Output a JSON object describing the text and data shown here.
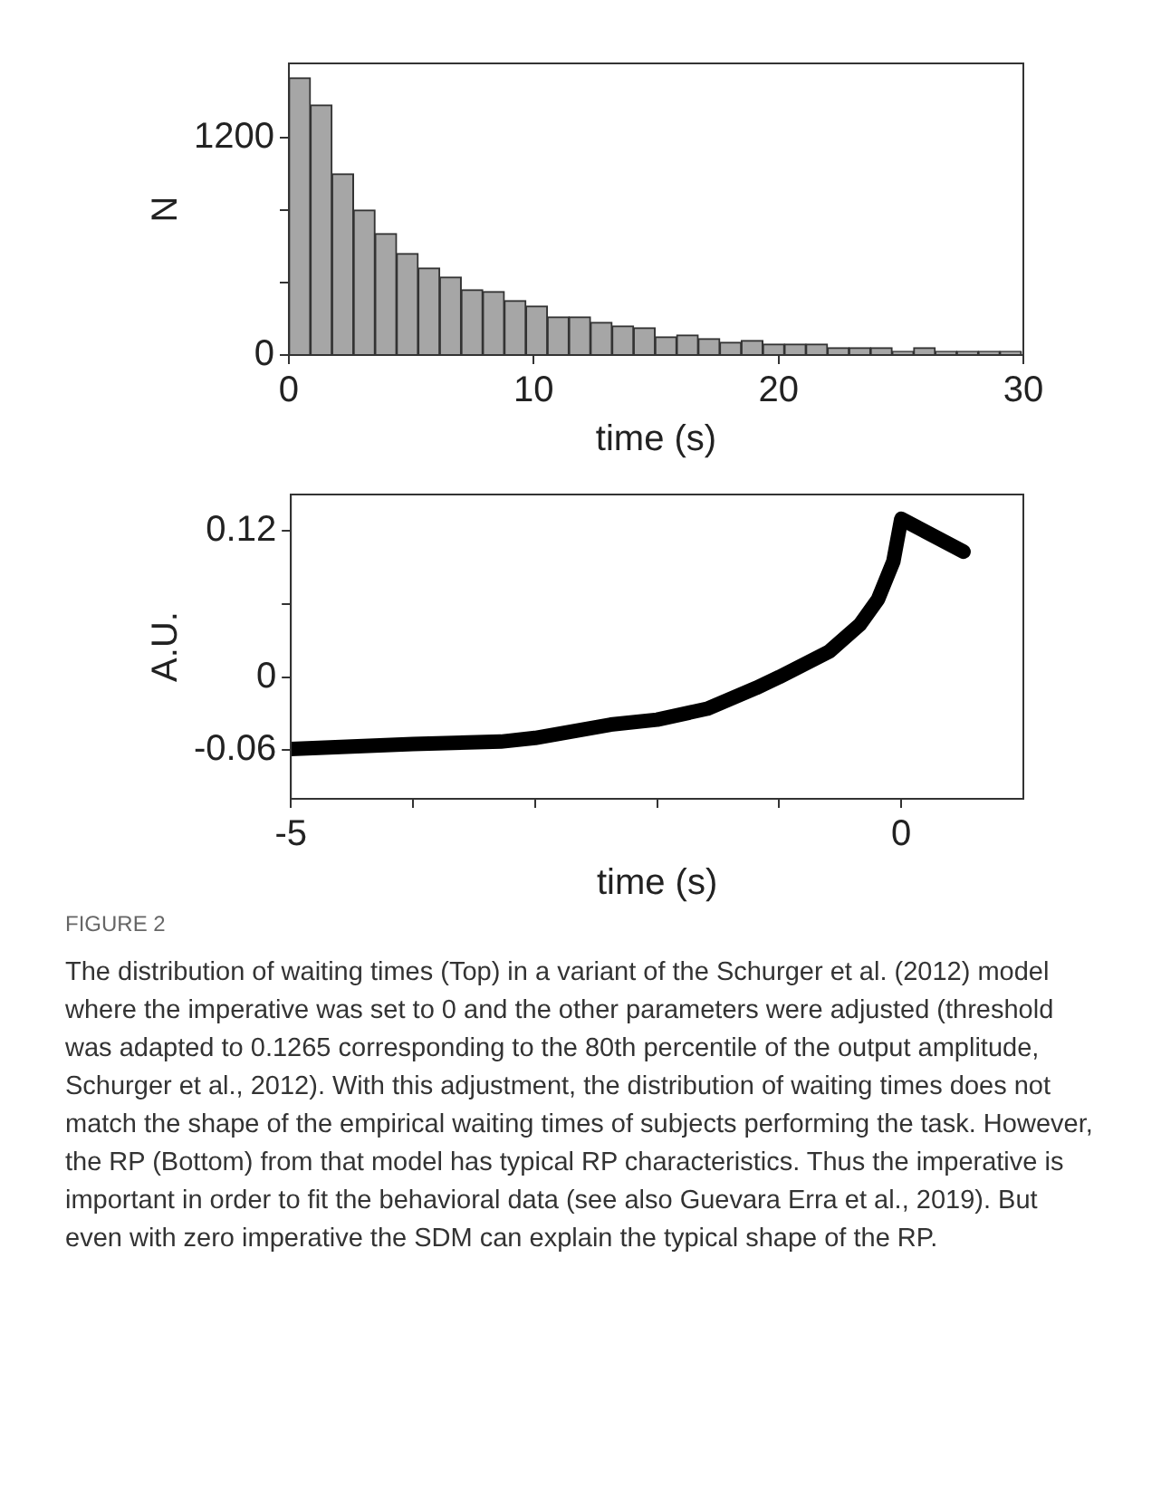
{
  "chart_data": [
    {
      "type": "histogram",
      "xlabel": "time (s)",
      "ylabel": "N",
      "color": "#a6a6a6",
      "bins": [
        0,
        0.88,
        1.76,
        2.64,
        3.52,
        4.4,
        5.28,
        6.16,
        7.04,
        7.92,
        8.8,
        9.68,
        10.56,
        11.44,
        12.32,
        13.2,
        14.08,
        14.96,
        15.84,
        16.72,
        17.6,
        18.48,
        19.36,
        20.24,
        21.12,
        22,
        22.88,
        23.76,
        24.64,
        25.52,
        26.4,
        27.28,
        28.16,
        29.04,
        29.92
      ],
      "values": [
        1530,
        1380,
        1000,
        800,
        670,
        560,
        480,
        430,
        360,
        350,
        300,
        270,
        210,
        210,
        180,
        160,
        150,
        100,
        110,
        90,
        70,
        80,
        60,
        60,
        60,
        40,
        40,
        40,
        20,
        40,
        20,
        20,
        20,
        20
      ],
      "xlim": [
        0,
        30
      ],
      "ylim": [
        0,
        1610
      ],
      "xticks": [
        0,
        10,
        20,
        30
      ],
      "yticks": [
        0,
        {
          "value": 400,
          "label": null
        },
        {
          "value": 800,
          "label": null
        },
        1200
      ]
    },
    {
      "type": "line",
      "xlabel": "time (s)",
      "ylabel": "A.U.",
      "color": "#000000",
      "x": [
        -5,
        -4,
        -3.28,
        -3,
        -2.38,
        -2,
        -1.59,
        -1.19,
        -1,
        -0.59,
        -0.34,
        -0.19,
        -0.065,
        0,
        0.51
      ],
      "values": [
        -0.059,
        -0.055,
        -0.053,
        -0.05,
        -0.039,
        -0.035,
        -0.026,
        -0.009,
        0,
        0.021,
        0.043,
        0.064,
        0.095,
        0.13,
        0.103
      ],
      "xlim": [
        -5,
        1
      ],
      "ylim": [
        -0.1,
        0.15
      ],
      "xticks": [
        -5,
        {
          "value": -4,
          "label": null
        },
        {
          "value": -3,
          "label": null
        },
        {
          "value": -2,
          "label": null
        },
        {
          "value": -1,
          "label": null
        },
        0
      ],
      "yticks": [
        -0.06,
        0,
        {
          "value": 0.06,
          "label": null
        },
        0.12
      ],
      "annotations": [
        "FIGURE 2",
        "The distribution of waiting times (Top) in a variant of the Schurger et al. (2012) model where the imperative was set to 0 and the other parameters were adjusted (threshold was adapted to 0.1265 corresponding to the 80th percentile of the output amplitude, Schurger et al., 2012). With this adjustment, the distribution of waiting times does not match the shape of the empirical waiting times of subjects performing the task. However, the RP (Bottom) from that model has typical RP characteristics. Thus the imperative is important in order to fit the behavioral data (see also Guevara Erra et al., 2019). But even with zero imperative the SDM can explain the typical shape of the RP."
      ]
    }
  ]
}
